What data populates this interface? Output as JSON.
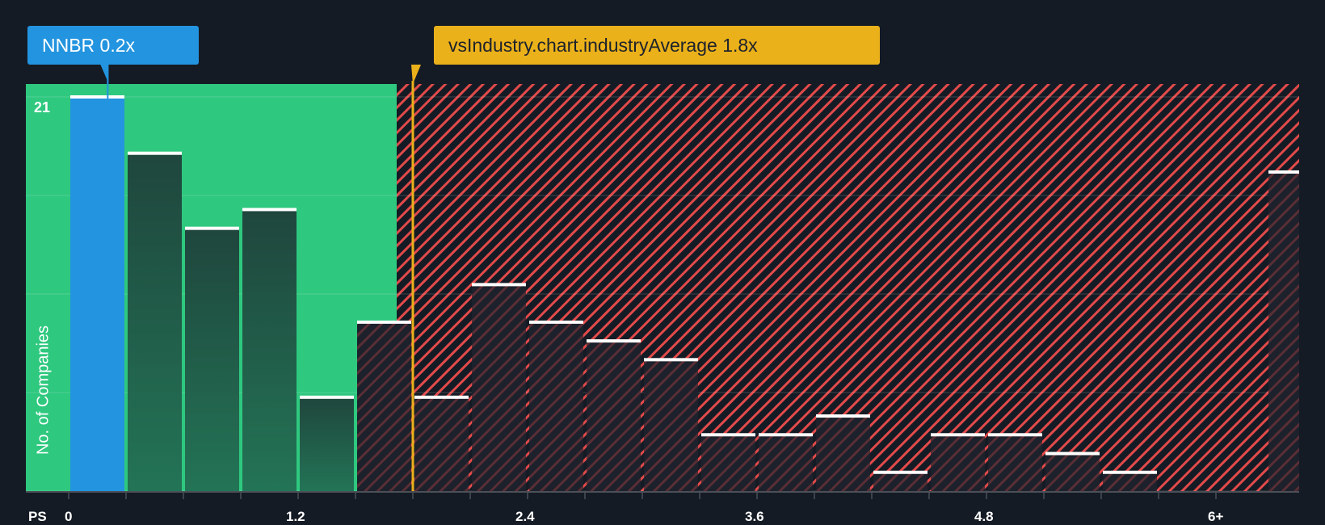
{
  "chart_data": {
    "type": "bar",
    "title": "",
    "xlabel": "PS",
    "ylabel": "No. of Companies",
    "ylim": [
      0,
      21
    ],
    "y_tick_labels": [
      "21"
    ],
    "x_tick_labels": [
      "0",
      "1.2",
      "2.4",
      "3.6",
      "4.8",
      "6+"
    ],
    "bin_width": 0.3,
    "categories": [
      "0-0.3",
      "0.3-0.6",
      "0.6-0.9",
      "0.9-1.2",
      "1.2-1.5",
      "1.5-1.8",
      "1.8-2.1",
      "2.1-2.4",
      "2.4-2.7",
      "2.7-3.0",
      "3.0-3.3",
      "3.3-3.6",
      "3.6-3.9",
      "3.9-4.2",
      "4.2-4.5",
      "4.5-4.8",
      "4.8-5.1",
      "5.1-5.4",
      "5.4-5.7",
      "6+"
    ],
    "values": [
      21,
      18,
      14,
      15,
      5,
      9,
      5,
      11,
      9,
      8,
      7,
      3,
      3,
      4,
      1,
      3,
      3,
      2,
      1,
      17
    ],
    "highlight_index": 0,
    "company": {
      "ticker": "NNBR",
      "value": 0.2,
      "label": "NNBR 0.2x"
    },
    "industry_average": {
      "value": 1.8,
      "label": "vsIndustry.chart.industryAverage 1.8x"
    },
    "grid": true,
    "legend": "none"
  },
  "colors": {
    "background": "#151b24",
    "good_zone": "#2ec87f",
    "bad_zone_stripe": "#e24a4a",
    "company_bar": "#2394df",
    "industry_line": "#ebb11a",
    "bar_green": "#1f4a3e",
    "bar_dark": "#1c212c",
    "bar_top": "#ffffff"
  },
  "labels": {
    "company_callout": "NNBR 0.2x",
    "industry_callout": "vsIndustry.chart.industryAverage 1.8x",
    "y_axis_title": "No. of Companies",
    "y_max_label": "21",
    "x_axis_title": "PS"
  }
}
